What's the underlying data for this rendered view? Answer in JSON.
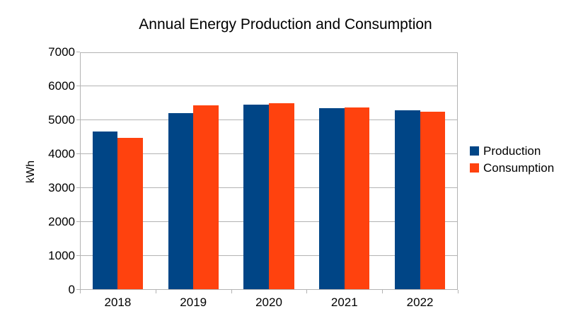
{
  "chart_data": {
    "type": "bar",
    "title": "Annual Energy Production and Consumption",
    "xlabel": "",
    "ylabel": "kWh",
    "categories": [
      "2018",
      "2019",
      "2020",
      "2021",
      "2022"
    ],
    "series": [
      {
        "name": "Production",
        "color": "#004586",
        "values": [
          4640,
          5180,
          5440,
          5330,
          5280
        ]
      },
      {
        "name": "Consumption",
        "color": "#FF420E",
        "values": [
          4450,
          5420,
          5470,
          5350,
          5230
        ]
      }
    ],
    "ylim": [
      0,
      7000
    ],
    "yticks": [
      0,
      1000,
      2000,
      3000,
      4000,
      5000,
      6000,
      7000
    ],
    "grid": true,
    "legend_position": "right",
    "colors": {
      "grid": "#b3b3b3",
      "axis": "#b3b3b3",
      "text": "#000000",
      "background": "#ffffff"
    }
  }
}
